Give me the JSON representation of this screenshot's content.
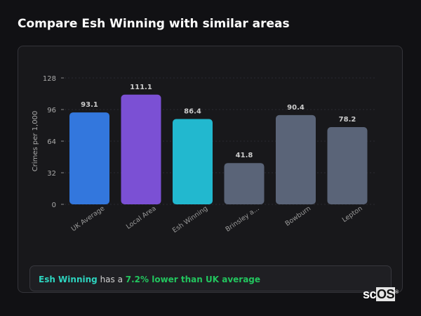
{
  "title": "Compare Esh Winning with similar areas",
  "chart_data": {
    "type": "bar",
    "categories": [
      "UK Average",
      "Local Area",
      "Esh Winning",
      "Brinsley a...",
      "Bowburn",
      "Lepton"
    ],
    "values": [
      93.1,
      111.1,
      86.4,
      41.8,
      90.4,
      78.2
    ],
    "value_labels": [
      "93.1",
      "111.1",
      "86.4",
      "41.8",
      "90.4",
      "78.2"
    ],
    "colors": [
      "#3377dd",
      "#7b50d4",
      "#22b8cf",
      "#5a6478",
      "#5a6478",
      "#5a6478"
    ],
    "ylabel": "Crimes per 1,000",
    "xlabel": "",
    "ylim": [
      0,
      128
    ],
    "yticks": [
      "0",
      "32",
      "64",
      "96",
      "128"
    ],
    "grid": true
  },
  "footer": {
    "place": "Esh Winning",
    "mid": " has a ",
    "comparison": "7.2% lower than UK average"
  },
  "logo": {
    "text_a": "sc",
    "text_b": "OS",
    "mark": "®"
  }
}
